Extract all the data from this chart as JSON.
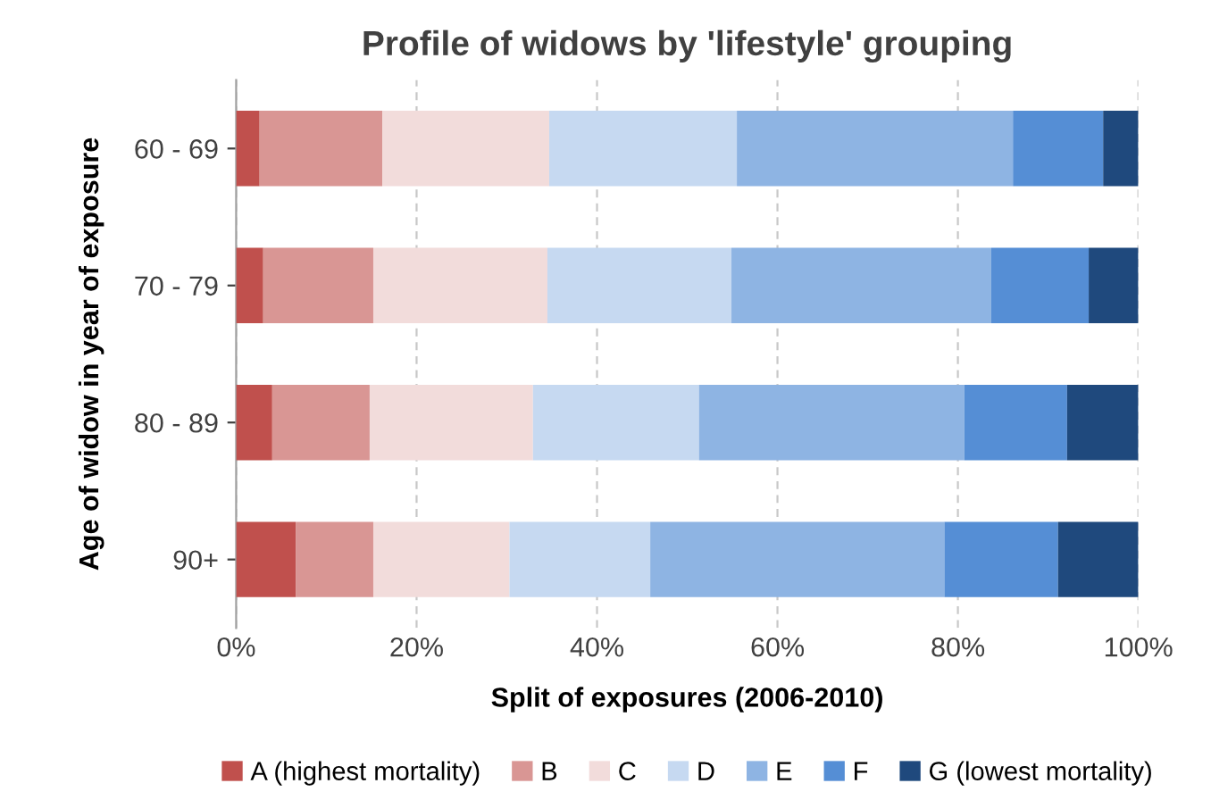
{
  "chart_data": {
    "type": "bar",
    "orientation": "horizontal",
    "stacked": true,
    "title": "Profile of widows by 'lifestyle' grouping",
    "xlabel": "Split of exposures (2006-2010)",
    "ylabel": "Age of widow in year of exposure",
    "categories": [
      "60 - 69",
      "70 - 79",
      "80 - 89",
      "90+"
    ],
    "series": [
      {
        "name": "A (highest mortality)",
        "color": "#c0504d",
        "values": [
          2.6,
          3.0,
          4.0,
          6.6
        ]
      },
      {
        "name": "B",
        "color": "#d99694",
        "values": [
          13.6,
          12.2,
          10.8,
          8.6
        ]
      },
      {
        "name": "C",
        "color": "#f2dcdb",
        "values": [
          18.5,
          19.3,
          18.1,
          15.1
        ]
      },
      {
        "name": "D",
        "color": "#c6d9f1",
        "values": [
          20.8,
          20.4,
          18.4,
          15.6
        ]
      },
      {
        "name": "E",
        "color": "#8eb4e3",
        "values": [
          30.6,
          28.8,
          29.4,
          32.6
        ]
      },
      {
        "name": "F",
        "color": "#558ed5",
        "values": [
          10.0,
          10.8,
          11.4,
          12.6
        ]
      },
      {
        "name": "G (lowest mortality)",
        "color": "#1f497d",
        "values": [
          3.9,
          5.5,
          7.9,
          8.9
        ]
      }
    ],
    "xlim": [
      0,
      100
    ],
    "xticks": [
      {
        "value": 0,
        "label": "0%"
      },
      {
        "value": 20,
        "label": "20%"
      },
      {
        "value": 40,
        "label": "40%"
      },
      {
        "value": 60,
        "label": "60%"
      },
      {
        "value": 80,
        "label": "80%"
      },
      {
        "value": 100,
        "label": "100%"
      }
    ],
    "grid": "x",
    "legend": "bottom"
  }
}
